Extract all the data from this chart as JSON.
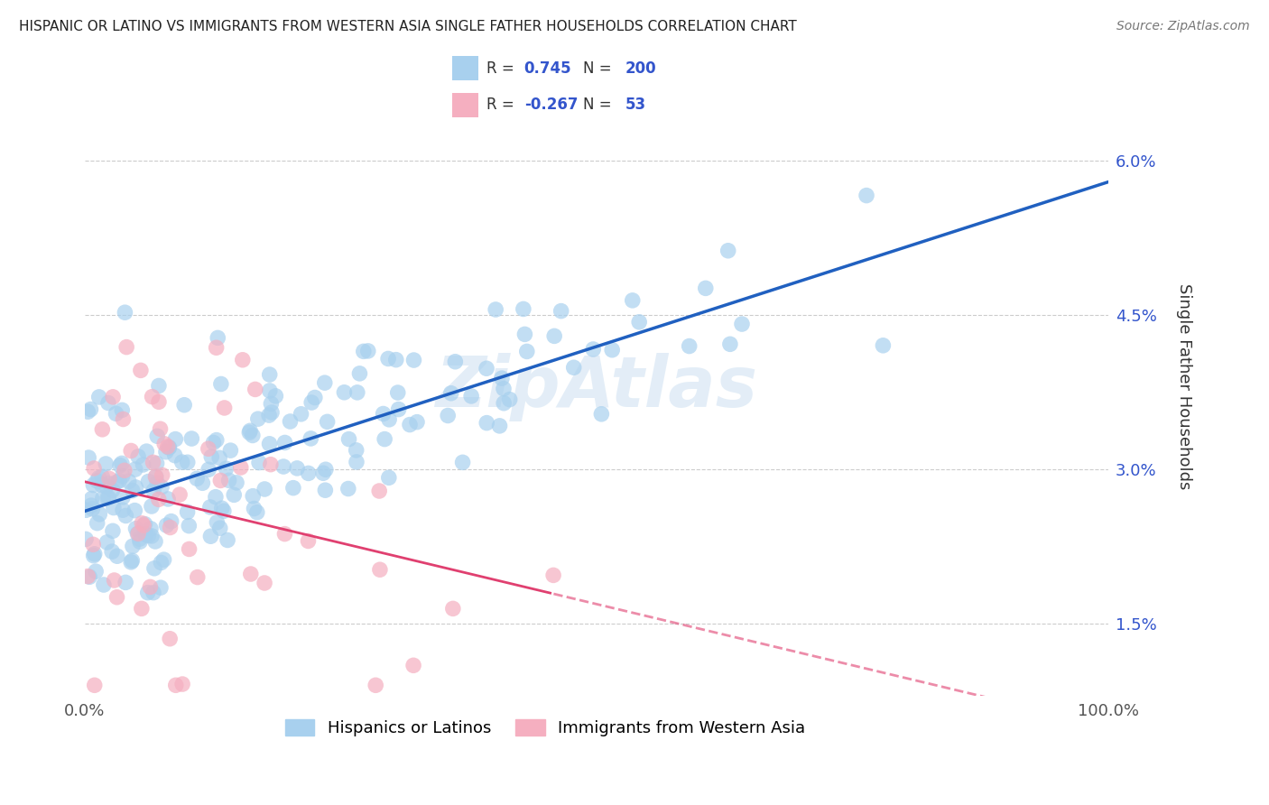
{
  "title": "HISPANIC OR LATINO VS IMMIGRANTS FROM WESTERN ASIA SINGLE FATHER HOUSEHOLDS CORRELATION CHART",
  "source": "Source: ZipAtlas.com",
  "ylabel": "Single Father Households",
  "xlim": [
    0,
    100
  ],
  "ylim": [
    0.8,
    6.8
  ],
  "yticks": [
    1.5,
    3.0,
    4.5,
    6.0
  ],
  "ytick_labels": [
    "1.5%",
    "3.0%",
    "4.5%",
    "6.0%"
  ],
  "blue_R": 0.745,
  "blue_N": 200,
  "pink_R": -0.267,
  "pink_N": 53,
  "blue_color": "#a8d0ee",
  "pink_color": "#f5afc0",
  "blue_line_color": "#2060c0",
  "pink_line_color": "#e04070",
  "watermark": "ZipAtlas",
  "legend_label_blue": "Hispanics or Latinos",
  "legend_label_pink": "Immigrants from Western Asia",
  "blue_seed": 42,
  "pink_seed": 7,
  "background_color": "#ffffff",
  "grid_color": "#cccccc",
  "legend_text_color": "#3355cc",
  "legend_label_color": "#333333"
}
